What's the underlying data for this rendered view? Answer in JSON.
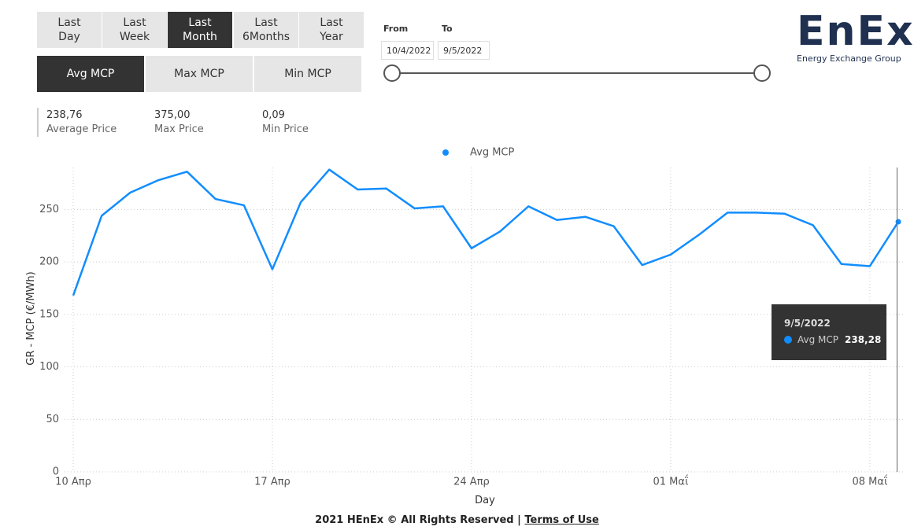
{
  "filters": {
    "periods": [
      "Last Day",
      "Last Week",
      "Last Month",
      "Last 6Months",
      "Last Year"
    ],
    "active_period": 2,
    "measures": [
      "Avg MCP",
      "Max MCP",
      "Min MCP"
    ],
    "active_measure": 0
  },
  "date_range": {
    "from_label": "From",
    "to_label": "To",
    "from": "10/4/2022",
    "to": "9/5/2022"
  },
  "logo": {
    "name": "EnEx",
    "tagline": "Energy Exchange Group"
  },
  "stats": [
    {
      "value": "238,76",
      "label": "Average Price"
    },
    {
      "value": "375,00",
      "label": "Max Price"
    },
    {
      "value": "0,09",
      "label": "Min Price"
    }
  ],
  "chart_data": {
    "type": "line",
    "x_label": "Day",
    "y_label": "GR - MCP (€/MWh)",
    "categories": [
      "10 Απρ",
      null,
      null,
      null,
      null,
      null,
      null,
      "17 Απρ",
      null,
      null,
      null,
      null,
      null,
      null,
      "24 Απρ",
      null,
      null,
      null,
      null,
      null,
      null,
      "01 Μαΐ",
      null,
      null,
      null,
      null,
      null,
      null,
      "08 Μαΐ",
      null
    ],
    "series": [
      {
        "name": "Avg MCP",
        "color": "#118DFF",
        "values": [
          168,
          244,
          266,
          278,
          286,
          260,
          254,
          193,
          257,
          288,
          269,
          270,
          251,
          253,
          213,
          229,
          253,
          240,
          243,
          234,
          197,
          207,
          226,
          247,
          247,
          246,
          235,
          198,
          196,
          238.28
        ]
      }
    ],
    "ylim": [
      0,
      290
    ],
    "yticks": [
      0,
      50,
      100,
      150,
      200,
      250
    ],
    "grid": true,
    "legend": "top"
  },
  "tooltip": {
    "date": "9/5/2022",
    "series": "Avg MCP",
    "value": "238,28"
  },
  "footer": {
    "text": "2021 HEnEx © All Rights Reserved | ",
    "link": "Terms of Use"
  }
}
